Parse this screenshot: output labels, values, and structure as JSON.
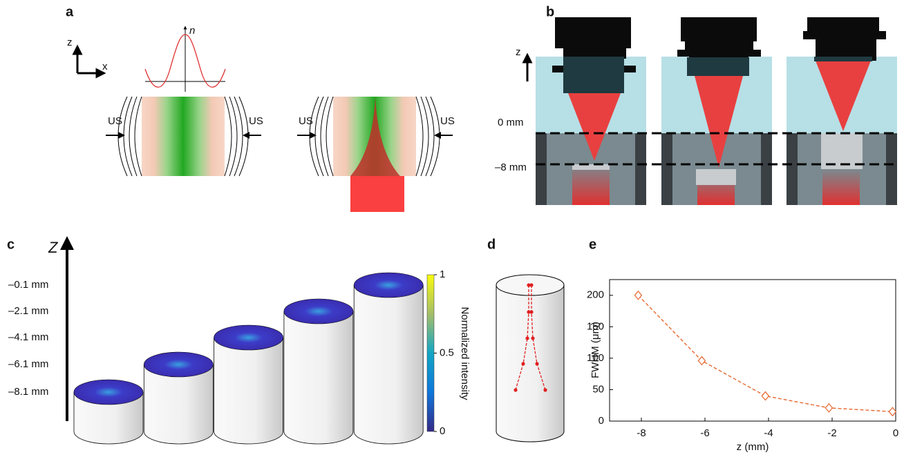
{
  "panel_labels": [
    "a",
    "b",
    "c",
    "d",
    "e"
  ],
  "panel_a": {
    "axis_z": "z",
    "axis_x": "x",
    "profile_label": "n",
    "us_labels": [
      "US",
      "US",
      "US",
      "US"
    ]
  },
  "panel_b": {
    "axis_z": "z",
    "planes": [
      "0 mm",
      "–8 mm"
    ]
  },
  "panel_c": {
    "axis_label": "Z",
    "depths": [
      "–0.1 mm",
      "–2.1 mm",
      "–4.1 mm",
      "–6.1 mm",
      "–8.1 mm"
    ],
    "colorbar": {
      "label": "Normalized intensity",
      "ticks": [
        0,
        0.5,
        1
      ]
    }
  },
  "chart_data": {
    "type": "line",
    "x": [
      -8.1,
      -6.1,
      -4.1,
      -2.1,
      -0.1
    ],
    "values": [
      200,
      96,
      40,
      21,
      15
    ],
    "color": "#e8703a",
    "xlim": [
      -9,
      0
    ],
    "ylim": [
      0,
      225
    ],
    "xticks": [
      -8,
      -6,
      -4,
      -2,
      0
    ],
    "yticks": [
      0,
      50,
      100,
      150,
      200
    ],
    "xlabel": "z (mm)",
    "ylabel": "FWHM (μm)"
  }
}
